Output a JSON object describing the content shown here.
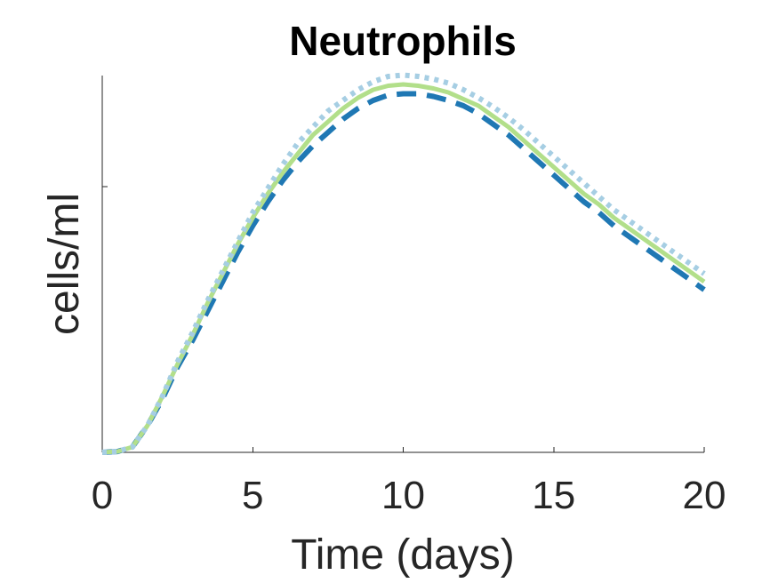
{
  "chart_data": {
    "type": "line",
    "title": "Neutrophils",
    "xlabel": "Time (days)",
    "ylabel": "cells/ml",
    "xlim": [
      0,
      20
    ],
    "ylim": [
      0,
      1.38
    ],
    "xticks": [
      0,
      5,
      10,
      15,
      20
    ],
    "xtick_labels": [
      "0",
      "5",
      "10",
      "15",
      "20"
    ],
    "yticks": [
      1
    ],
    "ytick_labels": [
      ""
    ],
    "grid": false,
    "legend": "none",
    "x": [
      0,
      0.5,
      1,
      1.5,
      2,
      2.5,
      3,
      3.5,
      4,
      4.5,
      5,
      5.5,
      6,
      6.5,
      7,
      7.5,
      8,
      8.5,
      9,
      9.5,
      10,
      10.5,
      11,
      11.5,
      12,
      12.5,
      13,
      13.5,
      14,
      14.5,
      15,
      15.5,
      16,
      16.5,
      17,
      17.5,
      18,
      18.5,
      19,
      19.5,
      20
    ],
    "series": [
      {
        "color": "#1f78b4",
        "style": "dashed",
        "values": [
          0,
          0.003,
          0.02,
          0.1,
          0.2,
          0.32,
          0.42,
          0.53,
          0.64,
          0.75,
          0.85,
          0.94,
          1.02,
          1.09,
          1.15,
          1.2,
          1.25,
          1.29,
          1.32,
          1.34,
          1.345,
          1.345,
          1.335,
          1.32,
          1.3,
          1.27,
          1.23,
          1.19,
          1.14,
          1.09,
          1.04,
          0.99,
          0.94,
          0.9,
          0.85,
          0.81,
          0.77,
          0.73,
          0.69,
          0.65,
          0.61
        ]
      },
      {
        "color": "#b2df8a",
        "style": "solid",
        "values": [
          0,
          0.003,
          0.02,
          0.1,
          0.21,
          0.33,
          0.44,
          0.56,
          0.67,
          0.78,
          0.88,
          0.97,
          1.05,
          1.12,
          1.19,
          1.24,
          1.29,
          1.33,
          1.36,
          1.375,
          1.38,
          1.375,
          1.365,
          1.35,
          1.325,
          1.3,
          1.26,
          1.22,
          1.17,
          1.12,
          1.07,
          1.02,
          0.97,
          0.93,
          0.88,
          0.84,
          0.8,
          0.76,
          0.72,
          0.68,
          0.64
        ]
      },
      {
        "color": "#a6cee3",
        "style": "dotted",
        "values": [
          0,
          0.003,
          0.02,
          0.1,
          0.21,
          0.34,
          0.45,
          0.57,
          0.68,
          0.79,
          0.9,
          0.99,
          1.08,
          1.16,
          1.22,
          1.28,
          1.32,
          1.36,
          1.39,
          1.41,
          1.415,
          1.41,
          1.4,
          1.385,
          1.36,
          1.33,
          1.295,
          1.255,
          1.21,
          1.16,
          1.11,
          1.06,
          1.01,
          0.96,
          0.91,
          0.87,
          0.83,
          0.79,
          0.75,
          0.71,
          0.67
        ]
      }
    ]
  }
}
